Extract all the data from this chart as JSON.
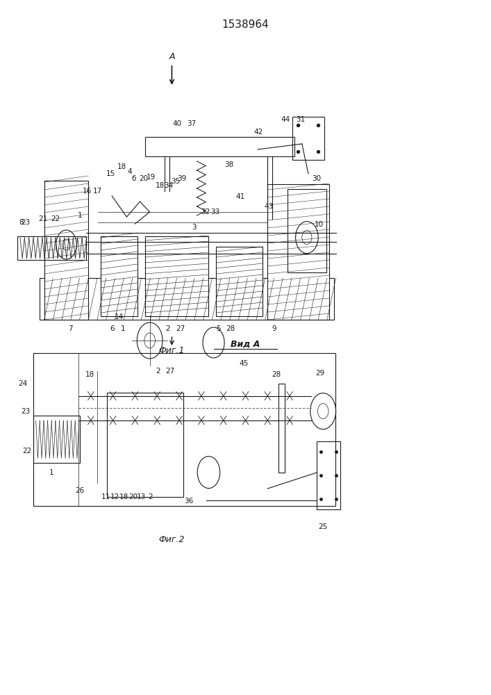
{
  "title": "1538964",
  "fig1_label": "Фиг.1",
  "fig2_label": "Фиг.2",
  "view_label": "Вид А",
  "arrow_label": "А",
  "bg_color": "#ffffff",
  "line_color": "#1a1a1a"
}
